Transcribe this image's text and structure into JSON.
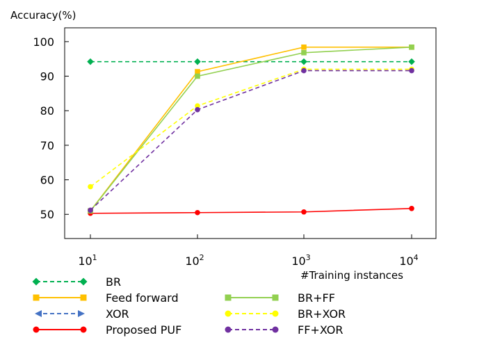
{
  "chart_data": {
    "type": "line",
    "title": "",
    "ylabel": "Accuracy(%)",
    "xlabel": "#Training instances",
    "x_scale": "log",
    "x": [
      10,
      100,
      1000,
      10000
    ],
    "x_tick_base": "10",
    "x_tick_exponents": [
      "1",
      "2",
      "3",
      "4"
    ],
    "y_ticks": [
      "50",
      "60",
      "70",
      "80",
      "90",
      "100"
    ],
    "ylim": [
      43,
      104
    ],
    "grid": false,
    "legend_position": "bottom",
    "series": [
      {
        "name": "BR",
        "values": [
          94.2,
          94.2,
          94.2,
          94.2
        ],
        "color": "#00b050",
        "dash": "dashed",
        "marker": "diamond"
      },
      {
        "name": "Feed forward",
        "values": [
          51.0,
          91.3,
          98.4,
          98.4
        ],
        "color": "#ffc000",
        "dash": "solid",
        "marker": "square"
      },
      {
        "name": "XOR",
        "values": [
          null,
          null,
          null,
          null
        ],
        "color": "#4472c4",
        "dash": "dashed",
        "marker": "triangle"
      },
      {
        "name": "Proposed PUF",
        "values": [
          50.3,
          50.5,
          50.7,
          51.7
        ],
        "color": "#ff0000",
        "dash": "solid",
        "marker": "circle"
      },
      {
        "name": "BR+FF",
        "values": [
          51.0,
          90.0,
          96.8,
          98.4
        ],
        "color": "#92d050",
        "dash": "solid",
        "marker": "square"
      },
      {
        "name": "BR+XOR",
        "values": [
          58.0,
          81.4,
          92.0,
          92.0
        ],
        "color": "#ffff00",
        "dash": "dashed",
        "marker": "circle"
      },
      {
        "name": "FF+XOR",
        "values": [
          51.2,
          80.3,
          91.6,
          91.6
        ],
        "color": "#7030a0",
        "dash": "dashed",
        "marker": "circle"
      }
    ]
  }
}
